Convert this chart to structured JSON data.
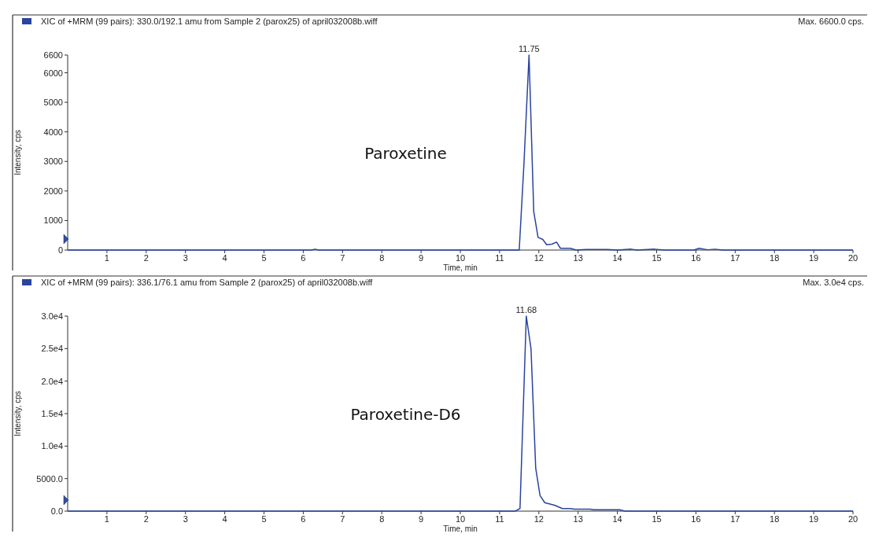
{
  "chart_data": [
    {
      "type": "line",
      "title": "XIC of +MRM (99 pairs): 330.0/192.1 amu from Sample 2 (parox25) of april032008b.wiff",
      "subtitle": "Max. 6600.0 cps.",
      "xlabel": "Time, min",
      "ylabel": "Intensity, cps",
      "xlim": [
        0,
        20
      ],
      "xticks": [
        1,
        2,
        3,
        4,
        5,
        6,
        7,
        8,
        9,
        10,
        11,
        12,
        13,
        14,
        15,
        16,
        17,
        18,
        19,
        20
      ],
      "ylim": [
        0,
        6600
      ],
      "yticks": [
        0,
        1000,
        2000,
        3000,
        4000,
        5000,
        6000,
        6600
      ],
      "grid": false,
      "annotations": [
        {
          "text": "11.75",
          "x": 11.75,
          "y": 6600
        },
        "Paroxetine"
      ],
      "series": [
        {
          "color": "#2a44a0",
          "x": [
            0,
            6.2,
            6.3,
            6.4,
            11.5,
            11.62,
            11.75,
            11.87,
            11.98,
            12.1,
            12.2,
            12.33,
            12.45,
            12.55,
            12.8,
            12.95,
            13.2,
            13.5,
            13.75,
            14.0,
            14.35,
            14.5,
            14.95,
            15.2,
            15.95,
            16.08,
            16.3,
            16.48,
            16.7,
            20
          ],
          "values": [
            0,
            0,
            30,
            0,
            0,
            2900,
            6600,
            1300,
            430,
            360,
            180,
            200,
            270,
            60,
            60,
            0,
            20,
            20,
            20,
            0,
            30,
            0,
            30,
            0,
            0,
            60,
            10,
            30,
            0,
            0
          ]
        }
      ]
    },
    {
      "type": "line",
      "title": "XIC of +MRM (99 pairs): 336.1/76.1 amu from Sample 2 (parox25) of april032008b.wiff",
      "subtitle": "Max. 3.0e4 cps.",
      "xlabel": "Time, min",
      "ylabel": "Intensity, cps",
      "xlim": [
        0,
        20
      ],
      "xticks": [
        1,
        2,
        3,
        4,
        5,
        6,
        7,
        8,
        9,
        10,
        11,
        12,
        13,
        14,
        15,
        16,
        17,
        18,
        19,
        20
      ],
      "ylim": [
        0,
        30000
      ],
      "yticks": [
        {
          "value": 0,
          "label": "0.0"
        },
        {
          "value": 5000,
          "label": "5000.0"
        },
        {
          "value": 10000,
          "label": "1.0e4"
        },
        {
          "value": 15000,
          "label": "1.5e4"
        },
        {
          "value": 20000,
          "label": "2.0e4"
        },
        {
          "value": 25000,
          "label": "2.5e4"
        },
        {
          "value": 30000,
          "label": "3.0e4"
        }
      ],
      "grid": false,
      "annotations": [
        {
          "text": "11.68",
          "x": 11.68,
          "y": 30000
        },
        "Paroxetine-D6"
      ],
      "series": [
        {
          "color": "#2a44a0",
          "x": [
            0,
            11.4,
            11.52,
            11.68,
            11.8,
            11.92,
            12.03,
            12.15,
            12.4,
            12.6,
            12.8,
            12.9,
            13.3,
            13.4,
            14.05,
            14.2,
            20
          ],
          "values": [
            0,
            0,
            400,
            30000,
            25000,
            6600,
            2400,
            1300,
            900,
            400,
            400,
            300,
            300,
            200,
            200,
            0,
            0
          ]
        }
      ]
    }
  ]
}
